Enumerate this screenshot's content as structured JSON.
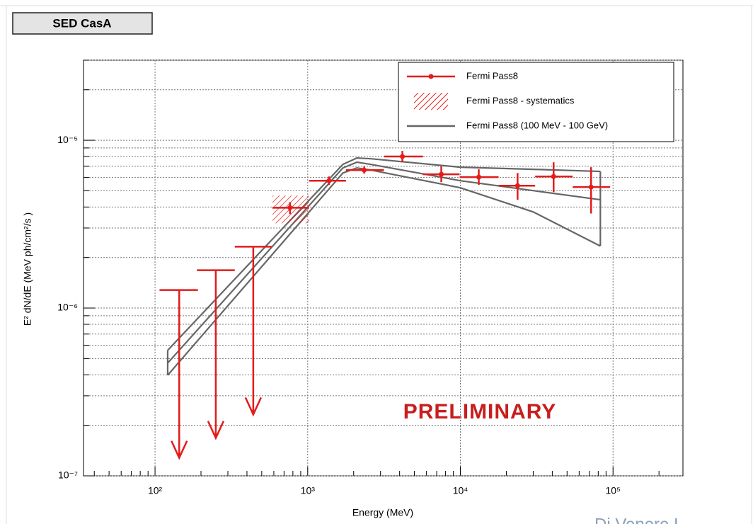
{
  "chart_data": {
    "type": "sed",
    "title": "SED CasA",
    "xlabel": "Energy (MeV)",
    "ylabel": "E² dN/dE (MeV ph/cm²/s )",
    "annotation": "PRELIMINARY",
    "author": "Di Venere L",
    "log_x": true,
    "log_y": true,
    "grid": true,
    "legend": "top-right",
    "xlim": [
      34,
      287000
    ],
    "ylim": [
      1e-07,
      3e-05
    ],
    "xticks": [
      {
        "value": 100,
        "label": "10²"
      },
      {
        "value": 1000,
        "label": "10³"
      },
      {
        "value": 10000,
        "label": "10⁴"
      },
      {
        "value": 100000,
        "label": "10⁵"
      }
    ],
    "yticks": [
      {
        "value": 1e-07,
        "label": "10⁻⁷"
      },
      {
        "value": 1e-06,
        "label": "10⁻⁶"
      },
      {
        "value": 1e-05,
        "label": "10⁻⁵"
      }
    ],
    "xminorticks": [
      40,
      50,
      60,
      70,
      80,
      90,
      200,
      300,
      400,
      500,
      600,
      700,
      800,
      900,
      2000,
      3000,
      4000,
      5000,
      6000,
      7000,
      8000,
      9000,
      20000,
      30000,
      40000,
      50000,
      60000,
      70000,
      80000,
      90000,
      200000
    ],
    "yminorticks": [
      2e-07,
      3e-07,
      4e-07,
      5e-07,
      6e-07,
      7e-07,
      8e-07,
      9e-07,
      2e-06,
      3e-06,
      4e-06,
      5e-06,
      6e-06,
      7e-06,
      8e-06,
      9e-06,
      2e-05,
      3e-05
    ],
    "points": {
      "name": "Fermi Pass8",
      "color": "#e31b1b",
      "x": [
        766,
        1377,
        2344,
        4170,
        7500,
        13200,
        23700,
        40800,
        71800
      ],
      "values": [
        3.96e-06,
        5.74e-06,
        6.64e-06,
        8e-06,
        6.27e-06,
        6.03e-06,
        5.36e-06,
        6.08e-06,
        5.26e-06
      ],
      "y_low": [
        3.63e-06,
        5.42e-06,
        6.33e-06,
        7.39e-06,
        5.63e-06,
        5.42e-06,
        4.42e-06,
        4.91e-06,
        3.66e-06
      ],
      "y_high": [
        4.28e-06,
        6.08e-06,
        6.98e-06,
        8.64e-06,
        6.98e-06,
        6.71e-06,
        6.38e-06,
        7.39e-06,
        6.91e-06
      ],
      "bin_edges": [
        588,
        1020,
        1780,
        3160,
        5690,
        9890,
        17800,
        30900,
        54400,
        95700
      ]
    },
    "systematics": {
      "name": "Fermi Pass8 - systematics",
      "color": "#e31b1b",
      "low": [
        3.2e-06,
        null,
        null,
        null,
        null,
        null,
        null,
        null,
        null
      ],
      "high": [
        4.68e-06,
        null,
        null,
        null,
        null,
        null,
        null,
        null,
        null
      ]
    },
    "upper_limits": {
      "color": "#e31b1b",
      "x": [
        144,
        250,
        440
      ],
      "values": [
        1.28e-06,
        1.68e-06,
        2.32e-06
      ],
      "x_low": [
        107,
        188,
        333
      ],
      "x_high": [
        191,
        333,
        580
      ]
    },
    "band": {
      "name": "Fermi Pass8 (100 MeV - 100 GeV)",
      "color": "#666666",
      "x": [
        121,
        1700,
        2100,
        2600,
        10000,
        30000,
        82600
      ],
      "upper": [
        5.6e-07,
        7.18e-06,
        7.84e-06,
        7.76e-06,
        6.91e-06,
        6.71e-06,
        6.52e-06
      ],
      "center": [
        4.7e-07,
        6.84e-06,
        7.4e-06,
        7.18e-06,
        5.74e-06,
        5.01e-06,
        4.42e-06
      ],
      "lower": [
        3.98e-07,
        6.38e-06,
        6.84e-06,
        6.64e-06,
        5.21e-06,
        3.74e-06,
        2.34e-06
      ]
    }
  }
}
